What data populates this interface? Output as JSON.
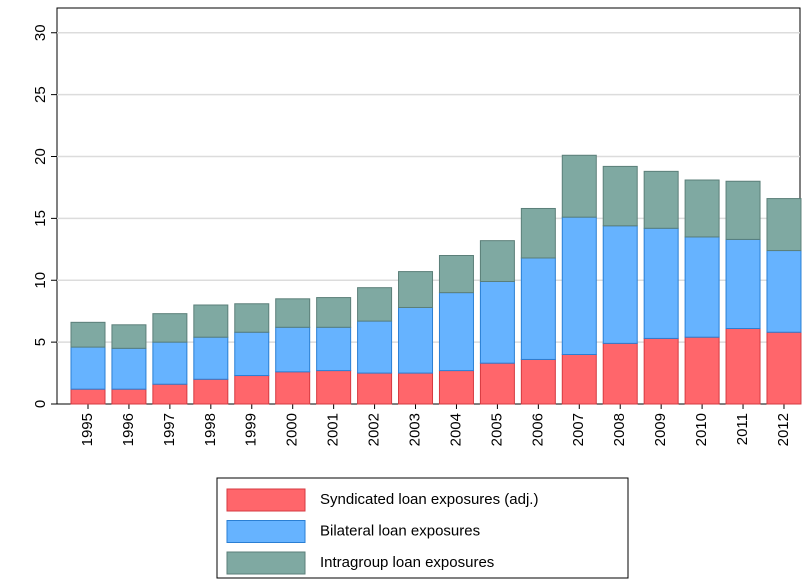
{
  "chart_data": {
    "type": "stacked-bar",
    "categories": [
      "1995",
      "1996",
      "1997",
      "1998",
      "1999",
      "2000",
      "2001",
      "2002",
      "2003",
      "2004",
      "2005",
      "2006",
      "2007",
      "2008",
      "2009",
      "2010",
      "2011",
      "2012"
    ],
    "series": [
      {
        "name": "Syndicated loan exposures (adj.)",
        "color": "#ff666b",
        "values": [
          1.2,
          1.2,
          1.6,
          2.0,
          2.3,
          2.6,
          2.7,
          2.5,
          2.5,
          2.7,
          3.3,
          3.6,
          4.0,
          4.9,
          5.3,
          5.4,
          6.1,
          5.8
        ]
      },
      {
        "name": "Bilateral loan exposures",
        "color": "#66b3ff",
        "values": [
          3.4,
          3.3,
          3.4,
          3.4,
          3.5,
          3.6,
          3.5,
          4.2,
          5.3,
          6.3,
          6.6,
          8.2,
          11.1,
          9.5,
          8.9,
          8.1,
          7.2,
          6.6
        ]
      },
      {
        "name": "Intragroup loan exposures",
        "color": "#7fa9a2",
        "values": [
          2.0,
          1.9,
          2.3,
          2.6,
          2.3,
          2.3,
          2.4,
          2.7,
          2.9,
          3.0,
          3.3,
          4.0,
          5.0,
          4.8,
          4.6,
          4.6,
          4.7,
          4.2
        ]
      }
    ],
    "ylim": [
      0,
      32
    ],
    "yticks": [
      0,
      5,
      10,
      15,
      20,
      25,
      30
    ],
    "grid": true,
    "legend": "bottom"
  }
}
